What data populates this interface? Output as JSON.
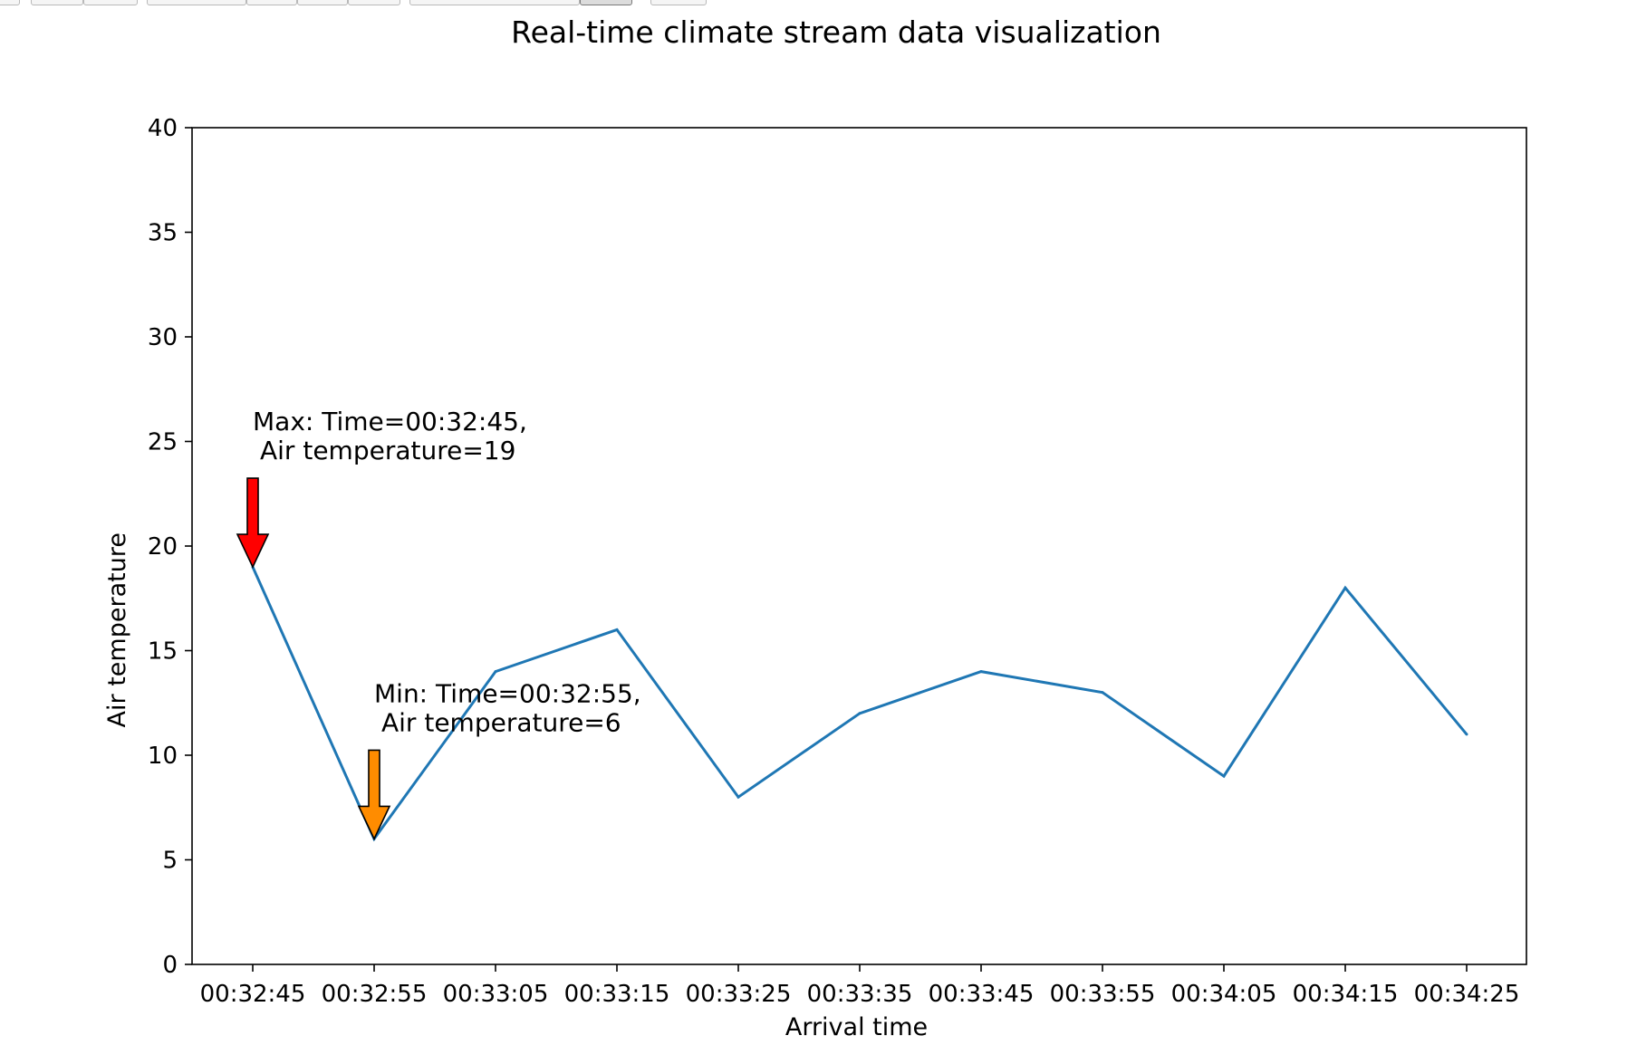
{
  "chart_data": {
    "type": "line",
    "title": "Real-time climate stream data visualization",
    "xlabel": "Arrival time",
    "ylabel": "Air temperature",
    "ylim": [
      0,
      40
    ],
    "yticks": [
      "0",
      "5",
      "10",
      "15",
      "20",
      "25",
      "30",
      "35",
      "40"
    ],
    "categories": [
      "00:32:45",
      "00:32:55",
      "00:33:05",
      "00:33:15",
      "00:33:25",
      "00:33:35",
      "00:33:45",
      "00:33:55",
      "00:34:05",
      "00:34:15",
      "00:34:25"
    ],
    "series": [
      {
        "values": [
          19,
          6,
          14,
          16,
          8,
          12,
          14,
          13,
          9,
          18,
          11
        ],
        "color": "#1f77b4"
      }
    ],
    "grid": false,
    "annotations": [
      {
        "kind": "max",
        "line1": "Max: Time=00:32:45,",
        "line2": "Air temperature=19",
        "x": "00:32:45",
        "y": 19,
        "arrow_color": "#ff0000"
      },
      {
        "kind": "min",
        "line1": "Min: Time=00:32:55,",
        "line2": "Air temperature=6",
        "x": "00:32:55",
        "y": 6,
        "arrow_color": "#ff8c00"
      }
    ]
  }
}
